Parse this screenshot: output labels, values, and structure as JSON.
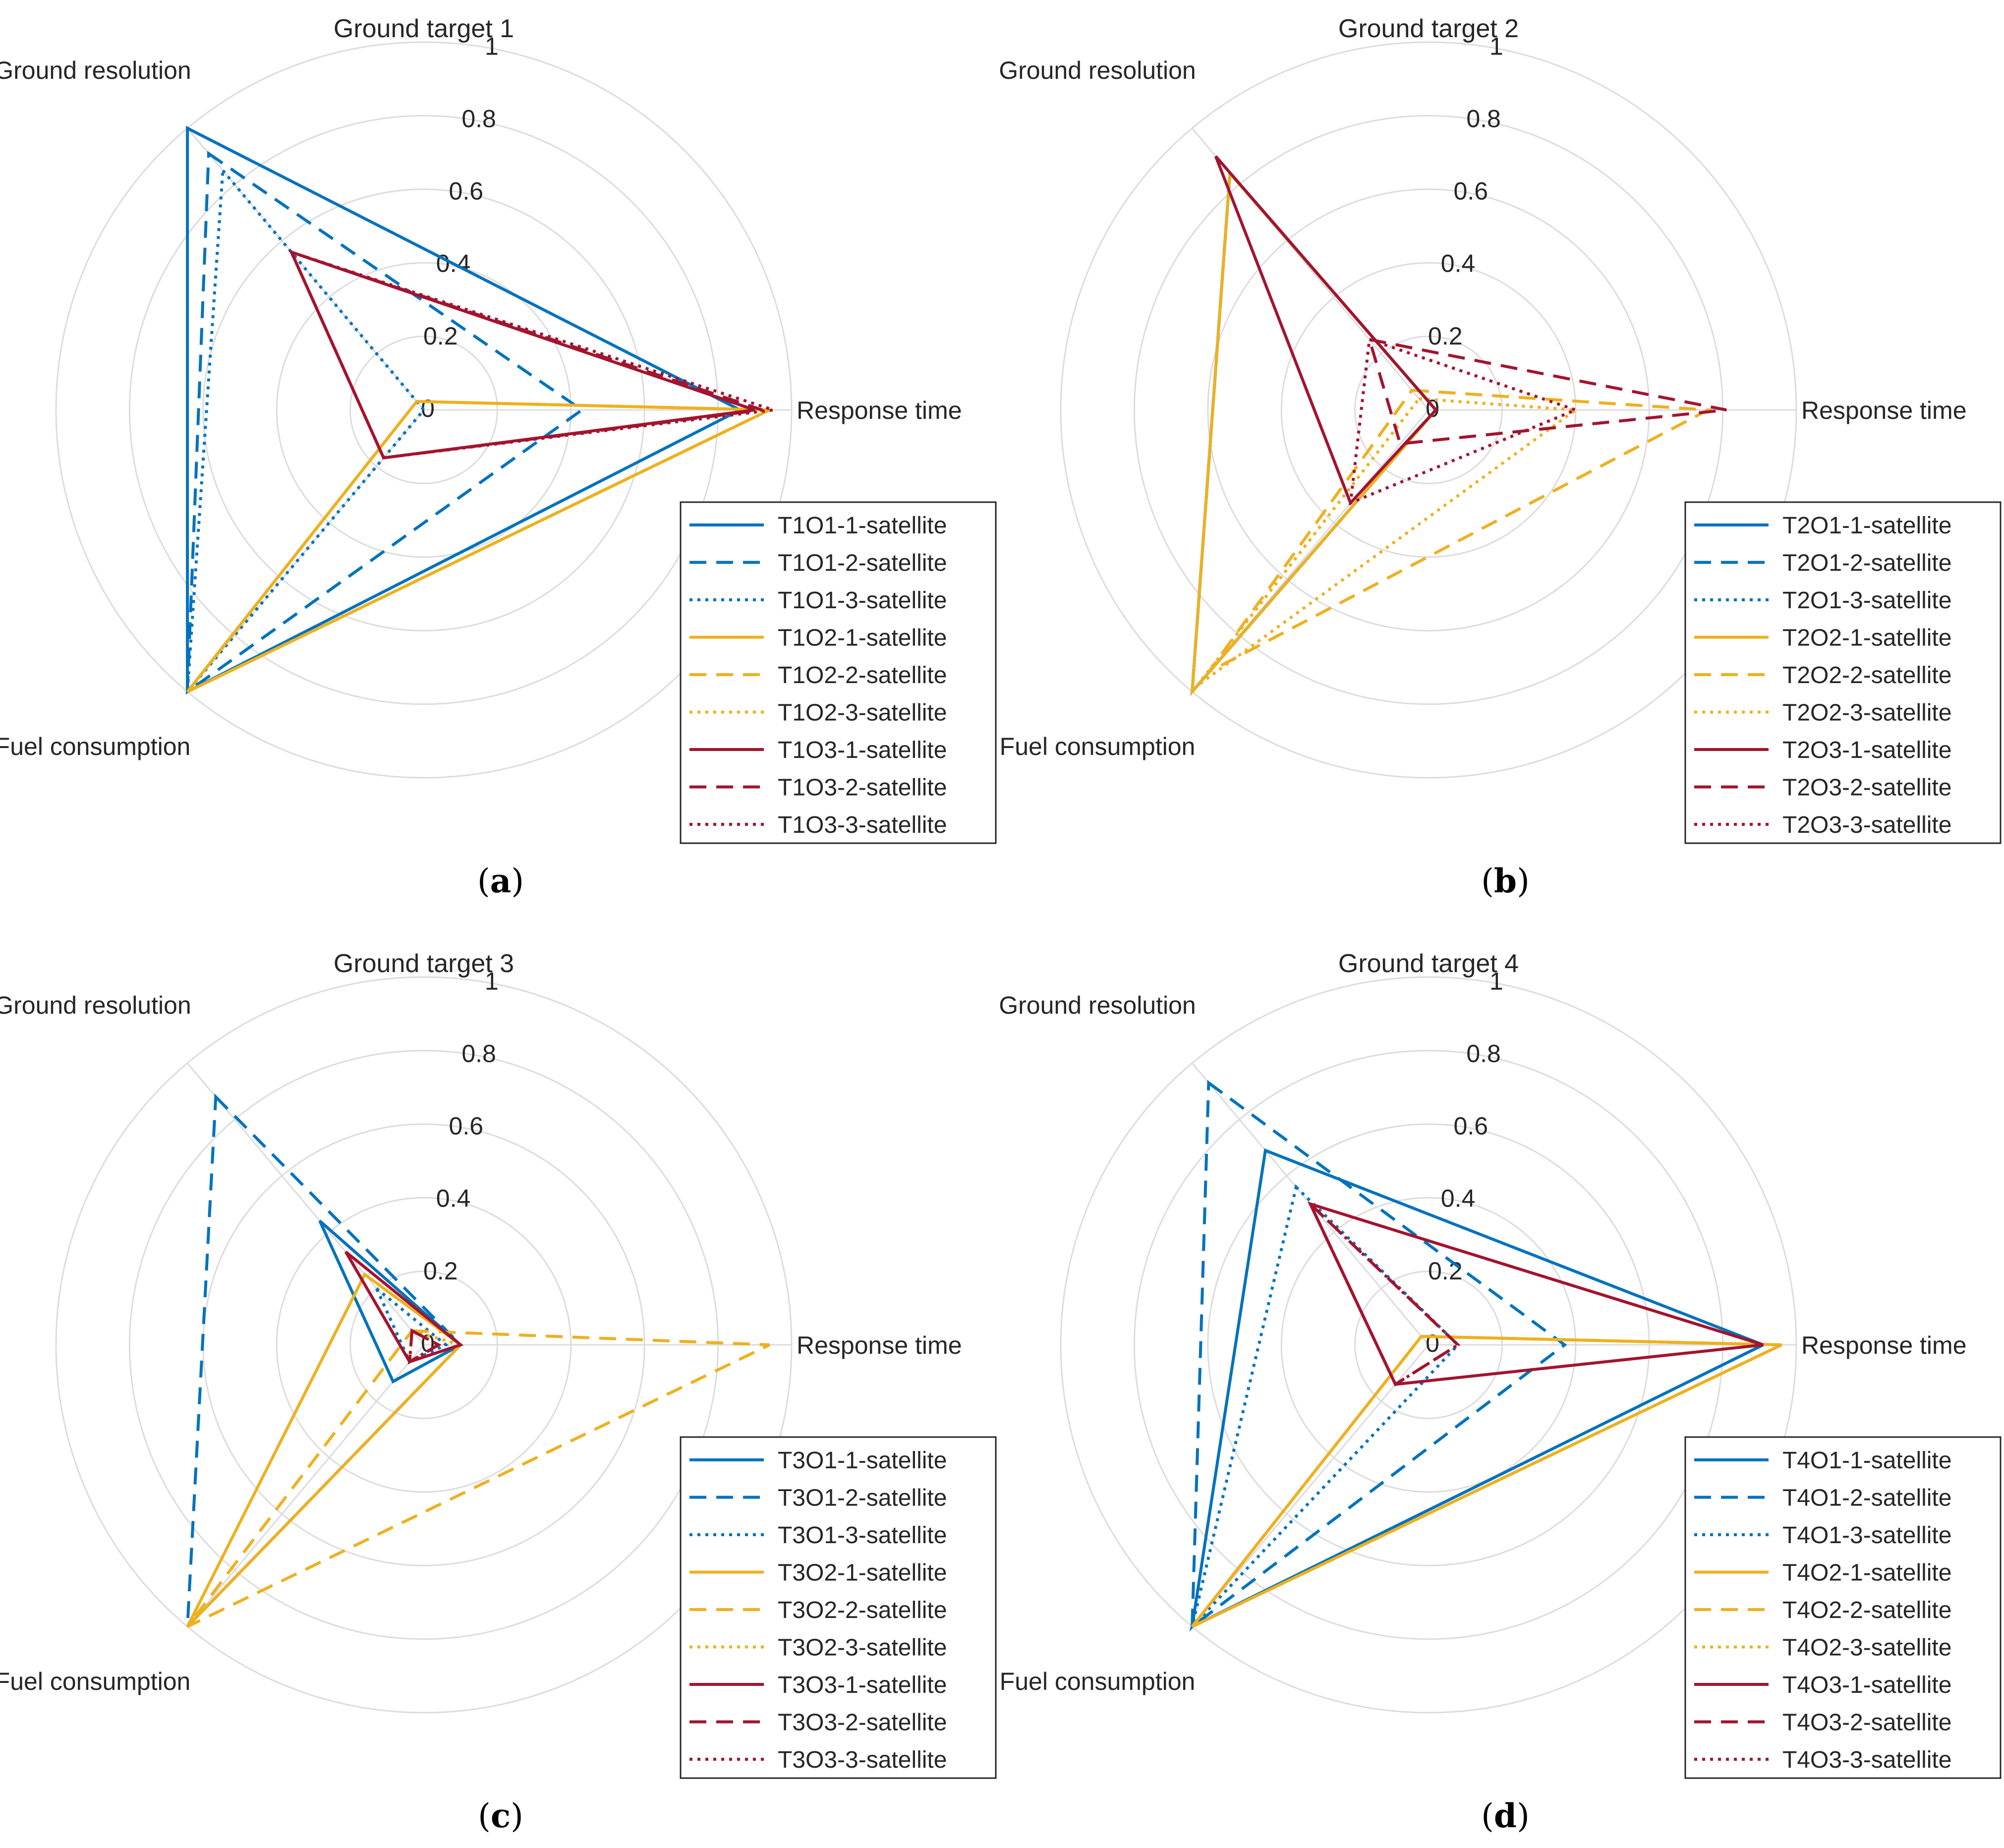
{
  "figure": {
    "colors": {
      "blue": "#0072BD",
      "orange": "#EDB120",
      "red": "#A2142F",
      "grid": "#dcdcdc"
    },
    "axis_labels": {
      "resolution": "Ground resolution",
      "response": "Response time",
      "fuel": "Fuel consumption"
    },
    "rticks": [
      "0",
      "0.2",
      "0.4",
      "0.6",
      "0.8",
      "1"
    ]
  },
  "chart_data": [
    {
      "type": "radar",
      "title": "Ground target 1",
      "caption": {
        "open": "(",
        "letter": "a",
        "close": ")"
      },
      "axes": [
        "Ground resolution",
        "Response time",
        "Fuel consumption"
      ],
      "rlim": [
        0,
        1
      ],
      "legend_position": "lower-right",
      "series": [
        {
          "name": "T1O1-1-satellite",
          "color": "blue",
          "style": "solid",
          "values": [
            1.0,
            0.86,
            1.0
          ]
        },
        {
          "name": "T1O1-2-satellite",
          "color": "blue",
          "style": "dashed",
          "values": [
            0.91,
            0.43,
            1.0
          ]
        },
        {
          "name": "T1O1-3-satellite",
          "color": "blue",
          "style": "dotted",
          "values": [
            0.85,
            0.0,
            1.0
          ]
        },
        {
          "name": "T1O2-1-satellite",
          "color": "orange",
          "style": "solid",
          "values": [
            0.03,
            0.94,
            1.0
          ]
        },
        {
          "name": "T1O2-2-satellite",
          "color": "orange",
          "style": "dashed",
          "values": [
            0.03,
            0.94,
            1.0
          ]
        },
        {
          "name": "T1O2-3-satellite",
          "color": "orange",
          "style": "dotted",
          "values": [
            0.03,
            0.94,
            1.0
          ]
        },
        {
          "name": "T1O3-1-satellite",
          "color": "red",
          "style": "solid",
          "values": [
            0.56,
            0.9,
            0.17
          ]
        },
        {
          "name": "T1O3-2-satellite",
          "color": "red",
          "style": "dashed",
          "values": [
            0.56,
            0.92,
            0.17
          ]
        },
        {
          "name": "T1O3-3-satellite",
          "color": "red",
          "style": "dotted",
          "values": [
            0.56,
            0.95,
            0.17
          ]
        }
      ]
    },
    {
      "type": "radar",
      "title": "Ground target 2",
      "caption": {
        "open": "(",
        "letter": "b",
        "close": ")"
      },
      "axes": [
        "Ground resolution",
        "Response time",
        "Fuel consumption"
      ],
      "rlim": [
        0,
        1
      ],
      "legend_position": "lower-right",
      "series": [
        {
          "name": "T2O1-1-satellite",
          "color": "blue",
          "style": "solid",
          "values": [
            0.84,
            0.02,
            1.0
          ]
        },
        {
          "name": "T2O1-2-satellite",
          "color": "blue",
          "style": "dashed",
          "values": [
            0.84,
            0.02,
            1.0
          ]
        },
        {
          "name": "T2O1-3-satellite",
          "color": "blue",
          "style": "dotted",
          "values": [
            0.84,
            0.02,
            1.0
          ]
        },
        {
          "name": "T2O2-1-satellite",
          "color": "orange",
          "style": "solid",
          "values": [
            0.84,
            0.02,
            1.0
          ]
        },
        {
          "name": "T2O2-2-satellite",
          "color": "orange",
          "style": "dashed",
          "values": [
            0.07,
            0.76,
            0.93
          ]
        },
        {
          "name": "T2O2-3-satellite",
          "color": "orange",
          "style": "dotted",
          "values": [
            0.04,
            0.4,
            0.98
          ]
        },
        {
          "name": "T2O3-1-satellite",
          "color": "red",
          "style": "solid",
          "values": [
            0.9,
            0.02,
            0.33
          ]
        },
        {
          "name": "T2O3-2-satellite",
          "color": "red",
          "style": "dashed",
          "values": [
            0.25,
            0.81,
            0.12
          ]
        },
        {
          "name": "T2O3-3-satellite",
          "color": "red",
          "style": "dotted",
          "values": [
            0.25,
            0.4,
            0.33
          ]
        }
      ]
    },
    {
      "type": "radar",
      "title": "Ground target 3",
      "caption": {
        "open": "(",
        "letter": "c",
        "close": ")"
      },
      "axes": [
        "Ground resolution",
        "Response time",
        "Fuel consumption"
      ],
      "rlim": [
        0,
        1
      ],
      "legend_position": "lower-right",
      "series": [
        {
          "name": "T3O1-1-satellite",
          "color": "blue",
          "style": "solid",
          "values": [
            0.44,
            0.1,
            0.13
          ]
        },
        {
          "name": "T3O1-2-satellite",
          "color": "blue",
          "style": "dashed",
          "values": [
            0.88,
            0.1,
            1.0
          ]
        },
        {
          "name": "T3O1-3-satellite",
          "color": "blue",
          "style": "dotted",
          "values": [
            0.2,
            0.06,
            0.06
          ]
        },
        {
          "name": "T3O2-1-satellite",
          "color": "orange",
          "style": "solid",
          "values": [
            0.25,
            0.1,
            1.0
          ]
        },
        {
          "name": "T3O2-2-satellite",
          "color": "orange",
          "style": "dashed",
          "values": [
            0.05,
            0.94,
            1.0
          ]
        },
        {
          "name": "T3O2-3-satellite",
          "color": "orange",
          "style": "dotted",
          "values": [
            0.05,
            0.1,
            0.06
          ]
        },
        {
          "name": "T3O3-1-satellite",
          "color": "red",
          "style": "solid",
          "values": [
            0.33,
            0.1,
            0.06
          ]
        },
        {
          "name": "T3O3-2-satellite",
          "color": "red",
          "style": "dashed",
          "values": [
            0.05,
            0.04,
            0.06
          ]
        },
        {
          "name": "T3O3-3-satellite",
          "color": "red",
          "style": "dotted",
          "values": [
            0.05,
            0.04,
            0.06
          ]
        }
      ]
    },
    {
      "type": "radar",
      "title": "Ground target 4",
      "caption": {
        "open": "(",
        "letter": "d",
        "close": ")"
      },
      "axes": [
        "Ground resolution",
        "Response time",
        "Fuel consumption"
      ],
      "rlim": [
        0,
        1
      ],
      "legend_position": "lower-right",
      "series": [
        {
          "name": "T4O1-1-satellite",
          "color": "blue",
          "style": "solid",
          "values": [
            0.69,
            0.91,
            1.0
          ]
        },
        {
          "name": "T4O1-2-satellite",
          "color": "blue",
          "style": "dashed",
          "values": [
            0.93,
            0.37,
            1.0
          ]
        },
        {
          "name": "T4O1-3-satellite",
          "color": "blue",
          "style": "dotted",
          "values": [
            0.56,
            0.08,
            1.0
          ]
        },
        {
          "name": "T4O2-1-satellite",
          "color": "orange",
          "style": "solid",
          "values": [
            0.03,
            0.96,
            1.0
          ]
        },
        {
          "name": "T4O2-2-satellite",
          "color": "orange",
          "style": "dashed",
          "values": [
            0.03,
            0.96,
            1.0
          ]
        },
        {
          "name": "T4O2-3-satellite",
          "color": "orange",
          "style": "dotted",
          "values": [
            0.03,
            0.96,
            1.0
          ]
        },
        {
          "name": "T4O3-1-satellite",
          "color": "red",
          "style": "solid",
          "values": [
            0.5,
            0.91,
            0.14
          ]
        },
        {
          "name": "T4O3-2-satellite",
          "color": "red",
          "style": "dashed",
          "values": [
            0.5,
            0.08,
            0.14
          ]
        },
        {
          "name": "T4O3-3-satellite",
          "color": "red",
          "style": "dotted",
          "values": [
            0.5,
            0.08,
            0.14
          ]
        }
      ]
    }
  ]
}
